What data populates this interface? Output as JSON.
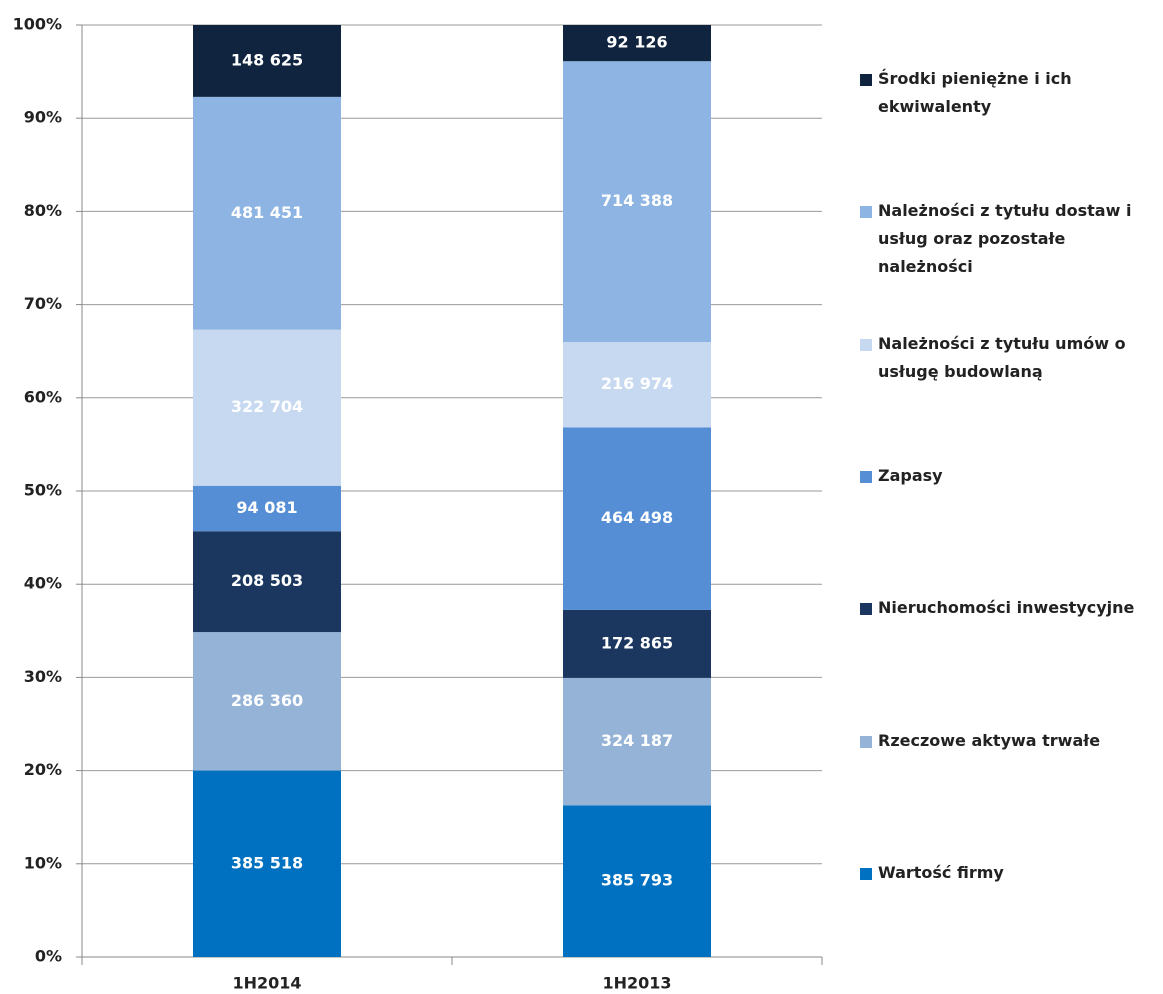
{
  "chart_data": {
    "type": "bar",
    "stacked": "percent",
    "categories": [
      "1H2014",
      "1H2013"
    ],
    "series": [
      {
        "name": "Wartość firmy",
        "color": "#0070c0",
        "values": [
          385518,
          385793
        ],
        "value_labels": [
          "385 518",
          "385 793"
        ]
      },
      {
        "name": "Rzeczowe aktywa trwałe",
        "color": "#95b3d7",
        "values": [
          286360,
          324187
        ],
        "value_labels": [
          "286 360",
          "324 187"
        ]
      },
      {
        "name": "Nieruchomości inwestycyjne",
        "color": "#1b375f",
        "values": [
          208503,
          172865
        ],
        "value_labels": [
          "208 503",
          "172 865"
        ]
      },
      {
        "name": "Zapasy",
        "color": "#558ed5",
        "values": [
          94081,
          464498
        ],
        "value_labels": [
          "94 081",
          "464 498"
        ]
      },
      {
        "name": "Należności z tytułu umów o usługę budowlaną",
        "color": "#c6d9f1",
        "values": [
          322704,
          216974
        ],
        "value_labels": [
          "322 704",
          "216 974"
        ]
      },
      {
        "name": "Należności z tytułu dostaw i usług oraz pozostałe należności",
        "color": "#8eb4e3",
        "values": [
          481451,
          714388
        ],
        "value_labels": [
          "481 451",
          "714 388"
        ]
      },
      {
        "name": "Środki pieniężne i ich ekwiwalenty",
        "color": "#10243f",
        "values": [
          148625,
          92126
        ],
        "value_labels": [
          "148 625",
          "92 126"
        ]
      }
    ],
    "ylim": [
      0,
      100
    ],
    "yticks": [
      {
        "value": 0,
        "label": "0%"
      },
      {
        "value": 10,
        "label": "10%"
      },
      {
        "value": 20,
        "label": "20%"
      },
      {
        "value": 30,
        "label": "30%"
      },
      {
        "value": 40,
        "label": "40%"
      },
      {
        "value": 50,
        "label": "50%"
      },
      {
        "value": 60,
        "label": "60%"
      },
      {
        "value": 70,
        "label": "70%"
      },
      {
        "value": 80,
        "label": "80%"
      },
      {
        "value": 90,
        "label": "90%"
      },
      {
        "value": 100,
        "label": "100%"
      }
    ],
    "grid": true,
    "legend": "right"
  }
}
